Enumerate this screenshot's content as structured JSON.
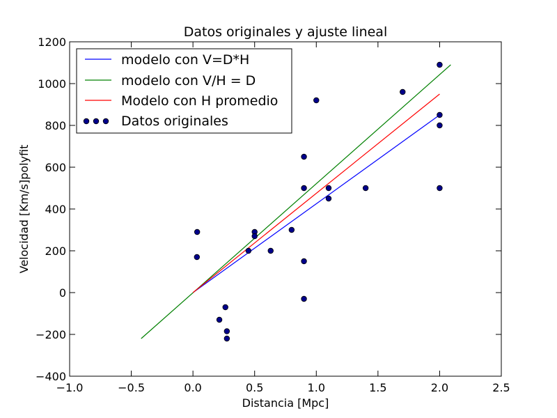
{
  "chart_data": {
    "type": "scatter",
    "title": "Datos originales y ajuste lineal",
    "xlabel": "Distancia [Mpc]",
    "ylabel": "Velocidad [Km/s]polyfit",
    "xlim": [
      -1.0,
      2.5
    ],
    "ylim": [
      -400,
      1200
    ],
    "xticks": [
      -1.0,
      -0.5,
      0.0,
      0.5,
      1.0,
      1.5,
      2.0,
      2.5
    ],
    "xtick_labels": [
      "−1.0",
      "−0.5",
      "0.0",
      "0.5",
      "1.0",
      "1.5",
      "2.0",
      "2.5"
    ],
    "yticks": [
      -400,
      -200,
      0,
      200,
      400,
      600,
      800,
      1000,
      1200
    ],
    "ytick_labels": [
      "−400",
      "−200",
      "0",
      "200",
      "400",
      "600",
      "800",
      "1000",
      "1200"
    ],
    "grid": false,
    "legend_position": "top-left",
    "lines": [
      {
        "name": "modelo con V=D*H",
        "color": "#0000ff",
        "x": [
          0.0,
          2.0
        ],
        "y": [
          0,
          850
        ]
      },
      {
        "name": "modelo con V/H = D",
        "color": "#008000",
        "x": [
          -0.42,
          2.09
        ],
        "y": [
          -220,
          1090
        ]
      },
      {
        "name": "Modelo con H promedio",
        "color": "#ff0000",
        "x": [
          0.0,
          2.0
        ],
        "y": [
          0,
          950
        ]
      }
    ],
    "scatter": {
      "name": "Datos originales",
      "color": "#00008b",
      "points": [
        {
          "x": 0.032,
          "y": 170
        },
        {
          "x": 0.034,
          "y": 290
        },
        {
          "x": 0.214,
          "y": -130
        },
        {
          "x": 0.263,
          "y": -70
        },
        {
          "x": 0.275,
          "y": -185
        },
        {
          "x": 0.275,
          "y": -220
        },
        {
          "x": 0.45,
          "y": 200
        },
        {
          "x": 0.5,
          "y": 290
        },
        {
          "x": 0.5,
          "y": 270
        },
        {
          "x": 0.63,
          "y": 200
        },
        {
          "x": 0.8,
          "y": 300
        },
        {
          "x": 0.9,
          "y": -30
        },
        {
          "x": 0.9,
          "y": 650
        },
        {
          "x": 0.9,
          "y": 150
        },
        {
          "x": 0.9,
          "y": 500
        },
        {
          "x": 1.0,
          "y": 920
        },
        {
          "x": 1.1,
          "y": 450
        },
        {
          "x": 1.1,
          "y": 500
        },
        {
          "x": 1.4,
          "y": 500
        },
        {
          "x": 1.7,
          "y": 960
        },
        {
          "x": 2.0,
          "y": 500
        },
        {
          "x": 2.0,
          "y": 850
        },
        {
          "x": 2.0,
          "y": 800
        },
        {
          "x": 2.0,
          "y": 1090
        }
      ]
    }
  }
}
